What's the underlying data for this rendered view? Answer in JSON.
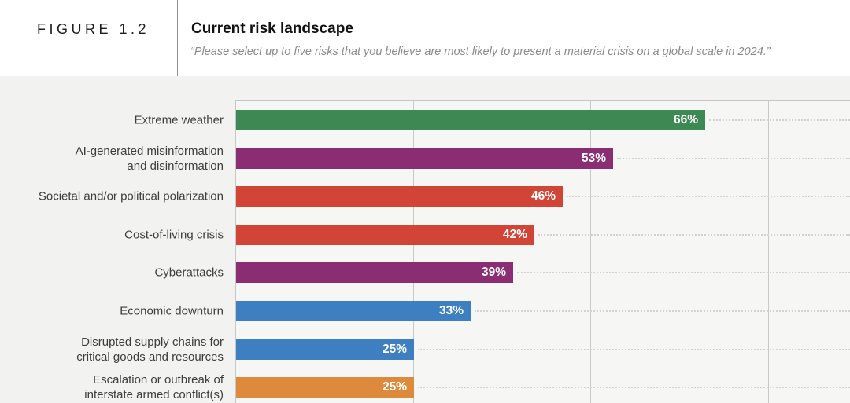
{
  "figure_header": {
    "figure_label": "FIGURE 1.2",
    "title": "Current risk landscape",
    "subtitle": "“Please select up to five risks that you believe are most likely to present a material crisis on a global scale in 2024.”"
  },
  "chart_data": {
    "type": "bar",
    "orientation": "horizontal",
    "title": "Current risk landscape",
    "xlabel": "",
    "ylabel": "",
    "unit": "%",
    "xlim": [
      0,
      100
    ],
    "gridline_percents": [
      25,
      50,
      75
    ],
    "grid": true,
    "legend": false,
    "value_labels_inside_bars": true,
    "bars": [
      {
        "label": "Extreme weather",
        "label_lines": [
          "Extreme weather"
        ],
        "value": 66,
        "value_label": "66%",
        "color": "#3e8853"
      },
      {
        "label": "AI-generated misinformation and disinformation",
        "label_lines": [
          "AI-generated misinformation",
          "and disinformation"
        ],
        "value": 53,
        "value_label": "53%",
        "color": "#8b2d72"
      },
      {
        "label": "Societal and/or political polarization",
        "label_lines": [
          "Societal and/or political polarization"
        ],
        "value": 46,
        "value_label": "46%",
        "color": "#d24536"
      },
      {
        "label": "Cost-of-living crisis",
        "label_lines": [
          "Cost-of-living crisis"
        ],
        "value": 42,
        "value_label": "42%",
        "color": "#d24536"
      },
      {
        "label": "Cyberattacks",
        "label_lines": [
          "Cyberattacks"
        ],
        "value": 39,
        "value_label": "39%",
        "color": "#8b2d72"
      },
      {
        "label": "Economic downturn",
        "label_lines": [
          "Economic downturn"
        ],
        "value": 33,
        "value_label": "33%",
        "color": "#3d7fc1"
      },
      {
        "label": "Disrupted supply chains for critical goods and resources",
        "label_lines": [
          "Disrupted supply chains for",
          "critical goods and resources"
        ],
        "value": 25,
        "value_label": "25%",
        "color": "#3d7fc1"
      },
      {
        "label": "Escalation or outbreak of interstate armed conflict(s)",
        "label_lines": [
          "Escalation or outbreak of",
          "interstate armed conflict(s)"
        ],
        "value": 25,
        "value_label": "25%",
        "color": "#dd8a3c"
      }
    ],
    "style_colors": {
      "chart_background": "#f2f2f1",
      "plot_background": "#f6f6f5",
      "gridline": "#c9c9c9",
      "leader_dots": "#d2d2d2",
      "label_text": "#3d3d3d",
      "value_text": "#ffffff"
    }
  }
}
